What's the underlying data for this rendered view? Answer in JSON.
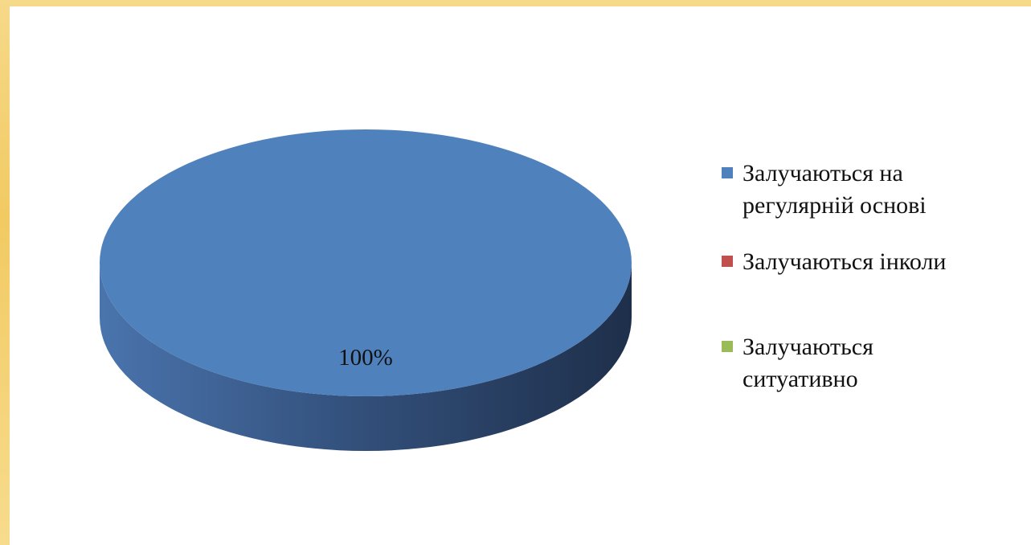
{
  "chart_data": {
    "type": "pie",
    "style": "3d",
    "categories": [
      "Залучаються на\nрегулярній  основі",
      "Залучаються інколи",
      "Залучаються\nситуативно"
    ],
    "values": [
      100,
      0,
      0
    ],
    "data_labels": [
      "100%"
    ],
    "colors": [
      "#4f81bd",
      "#c0504d",
      "#9bbb59"
    ],
    "legend_position": "right"
  }
}
